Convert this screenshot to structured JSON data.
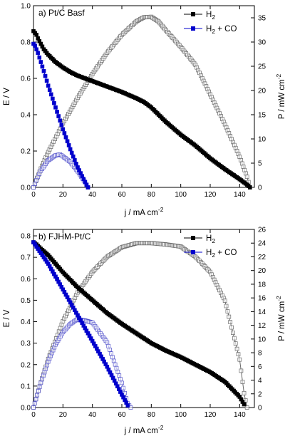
{
  "chart_data": [
    {
      "type": "line",
      "panel_label": "a) Pt/C Basf",
      "xlabel": "j / mA cm",
      "xlabel_sup": "-2",
      "ylabel_left": "E / V",
      "ylabel_right": "P / mW cm",
      "ylabel_right_sup": "-2",
      "xlim": [
        0,
        150
      ],
      "ylim_left": [
        0,
        1.0
      ],
      "ylim_right": [
        0,
        37.5
      ],
      "x_ticks": [
        "0",
        "20",
        "40",
        "60",
        "80",
        "100",
        "120",
        "140"
      ],
      "y_left_ticks": [
        "0.0",
        "0.2",
        "0.4",
        "0.6",
        "0.8",
        "1.0"
      ],
      "y_right_ticks": [
        "0",
        "5",
        "10",
        "15",
        "20",
        "25",
        "30",
        "35"
      ],
      "legend": [
        {
          "label": "H",
          "sub": "2",
          "suffix": "",
          "color": "#000000"
        },
        {
          "label": "H",
          "sub": "2",
          "suffix": " + CO",
          "color": "#0000cc"
        }
      ],
      "series": [
        {
          "name": "H2",
          "axis": "left",
          "marker": "square-filled",
          "color": "#000000",
          "x": [
            0,
            1,
            2,
            3,
            5,
            7,
            10,
            15,
            20,
            25,
            30,
            40,
            50,
            60,
            70,
            75,
            80,
            85,
            90,
            100,
            110,
            120,
            130,
            140,
            145,
            147
          ],
          "y": [
            0.86,
            0.85,
            0.84,
            0.82,
            0.79,
            0.76,
            0.73,
            0.69,
            0.66,
            0.635,
            0.615,
            0.585,
            0.555,
            0.525,
            0.49,
            0.47,
            0.44,
            0.4,
            0.36,
            0.29,
            0.23,
            0.16,
            0.1,
            0.045,
            0.015,
            0.0
          ]
        },
        {
          "name": "H2 + CO",
          "axis": "left",
          "marker": "square-filled",
          "color": "#0000cc",
          "x": [
            0,
            1,
            2,
            3,
            5,
            7,
            10,
            15,
            20,
            25,
            30,
            35,
            37
          ],
          "y": [
            0.79,
            0.78,
            0.76,
            0.74,
            0.69,
            0.64,
            0.56,
            0.44,
            0.32,
            0.21,
            0.11,
            0.03,
            0.0
          ]
        },
        {
          "name": "P H2",
          "axis": "right",
          "marker": "square-open",
          "color": "#666666",
          "x": [
            0,
            5,
            10,
            20,
            30,
            40,
            50,
            60,
            70,
            75,
            80,
            85,
            90,
            100,
            110,
            120,
            130,
            140,
            145,
            147
          ],
          "y": [
            0,
            3.9,
            7.3,
            13.2,
            18.5,
            23.4,
            27.8,
            31.5,
            34.3,
            35.1,
            35.2,
            34.2,
            32.4,
            29.0,
            25.3,
            19.2,
            13.0,
            6.3,
            2.2,
            0.0
          ]
        },
        {
          "name": "P H2 + CO",
          "axis": "right",
          "marker": "square-open",
          "color": "#5555cc",
          "x": [
            0,
            2,
            5,
            10,
            15,
            18,
            20,
            25,
            30,
            35,
            37
          ],
          "y": [
            0,
            1.5,
            3.45,
            5.6,
            6.6,
            6.8,
            6.4,
            5.25,
            3.3,
            1.05,
            0.0
          ]
        }
      ]
    },
    {
      "type": "line",
      "panel_label": "b) FJHM-Pt/C",
      "xlabel": "j / mA cm",
      "xlabel_sup": "-2",
      "ylabel_left": "E / V",
      "ylabel_right": "P / mW cm",
      "ylabel_right_sup": "-2",
      "xlim": [
        0,
        150
      ],
      "ylim_left": [
        0,
        0.83
      ],
      "ylim_right": [
        0,
        26
      ],
      "x_ticks": [
        "0",
        "20",
        "40",
        "60",
        "80",
        "100",
        "120",
        "140"
      ],
      "y_left_ticks": [
        "0.0",
        "0.1",
        "0.2",
        "0.3",
        "0.4",
        "0.5",
        "0.6",
        "0.7",
        "0.8"
      ],
      "y_right_ticks": [
        "0",
        "2",
        "4",
        "6",
        "8",
        "10",
        "12",
        "14",
        "16",
        "18",
        "20",
        "22",
        "24",
        "26"
      ],
      "legend": [
        {
          "label": "H",
          "sub": "2",
          "suffix": "",
          "color": "#000000"
        },
        {
          "label": "H",
          "sub": "2",
          "suffix": " + CO",
          "color": "#0000cc"
        }
      ],
      "series": [
        {
          "name": "H2",
          "axis": "left",
          "marker": "square-filled",
          "color": "#000000",
          "x": [
            0,
            2,
            5,
            10,
            15,
            20,
            30,
            40,
            50,
            60,
            70,
            80,
            90,
            100,
            110,
            120,
            130,
            140,
            143
          ],
          "y": [
            0.77,
            0.76,
            0.74,
            0.71,
            0.67,
            0.63,
            0.56,
            0.5,
            0.44,
            0.39,
            0.345,
            0.3,
            0.265,
            0.235,
            0.2,
            0.165,
            0.12,
            0.05,
            0.015
          ]
        },
        {
          "name": "H2 + CO",
          "axis": "left",
          "marker": "square-filled",
          "color": "#0000cc",
          "x": [
            0,
            2,
            5,
            10,
            15,
            20,
            25,
            30,
            40,
            50,
            60,
            64
          ],
          "y": [
            0.77,
            0.75,
            0.72,
            0.67,
            0.61,
            0.55,
            0.49,
            0.43,
            0.31,
            0.19,
            0.06,
            0.01
          ]
        },
        {
          "name": "P H2",
          "axis": "right",
          "marker": "square-open",
          "color": "#666666",
          "x": [
            0,
            5,
            10,
            20,
            30,
            40,
            50,
            60,
            70,
            75,
            80,
            90,
            100,
            110,
            120,
            130,
            140,
            143,
            145
          ],
          "y": [
            0,
            3.7,
            7.1,
            12.6,
            16.8,
            19.8,
            22.0,
            23.4,
            24.0,
            24.0,
            24.0,
            23.8,
            23.5,
            22.0,
            19.8,
            15.6,
            7.0,
            2.1,
            0.0
          ]
        },
        {
          "name": "P H2 + CO",
          "axis": "right",
          "marker": "square-open",
          "color": "#5555cc",
          "x": [
            0,
            5,
            10,
            15,
            20,
            25,
            30,
            35,
            40,
            50,
            60,
            64,
            66
          ],
          "y": [
            0,
            3.6,
            6.7,
            9.2,
            11.0,
            12.2,
            12.9,
            12.7,
            12.4,
            9.5,
            3.6,
            0.6,
            0.0
          ]
        }
      ]
    }
  ]
}
